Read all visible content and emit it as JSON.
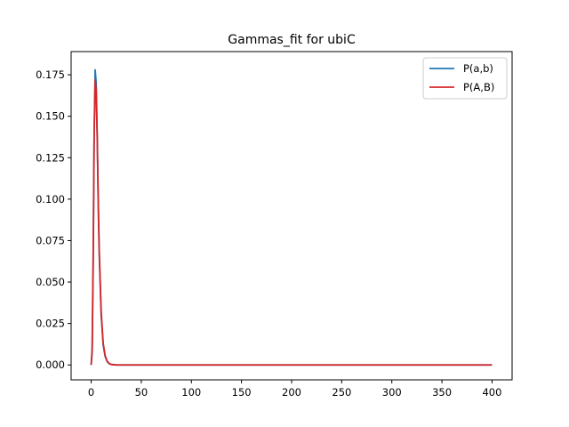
{
  "chart_data": {
    "type": "line",
    "title": "Gammas_fit for ubiC",
    "xlabel": "",
    "ylabel": "",
    "xlim": [
      -20,
      420
    ],
    "ylim": [
      -0.009,
      0.189
    ],
    "x_ticks": [
      0,
      50,
      100,
      150,
      200,
      250,
      300,
      350,
      400
    ],
    "y_ticks": [
      0.0,
      0.025,
      0.05,
      0.075,
      0.1,
      0.125,
      0.15,
      0.175
    ],
    "y_tick_labels": [
      "0.000",
      "0.025",
      "0.050",
      "0.075",
      "0.100",
      "0.125",
      "0.150",
      "0.175"
    ],
    "grid": false,
    "legend_position": "top-right",
    "series": [
      {
        "name": "P(a,b)",
        "color": "#1f77b4",
        "x": [
          0,
          1,
          2,
          3,
          4,
          5,
          6,
          7,
          8,
          10,
          12,
          14,
          16,
          18,
          20,
          25,
          30,
          50,
          100,
          200,
          300,
          400
        ],
        "y": [
          0.0,
          0.008,
          0.06,
          0.14,
          0.178,
          0.17,
          0.14,
          0.1,
          0.068,
          0.03,
          0.012,
          0.005,
          0.002,
          0.0008,
          0.0003,
          3e-05,
          0.0,
          0.0,
          0.0,
          0.0,
          0.0,
          0.0
        ]
      },
      {
        "name": "P(A,B)",
        "color": "#d62728",
        "x": [
          0,
          1,
          2,
          3,
          4,
          5,
          6,
          7,
          8,
          10,
          12,
          14,
          16,
          18,
          20,
          25,
          30,
          50,
          100,
          200,
          300,
          400
        ],
        "y": [
          0.0,
          0.01,
          0.065,
          0.14,
          0.172,
          0.165,
          0.138,
          0.1,
          0.07,
          0.032,
          0.013,
          0.0055,
          0.0022,
          0.0009,
          0.0003,
          3e-05,
          0.0,
          0.0,
          0.0,
          0.0,
          0.0,
          0.0
        ]
      }
    ]
  }
}
